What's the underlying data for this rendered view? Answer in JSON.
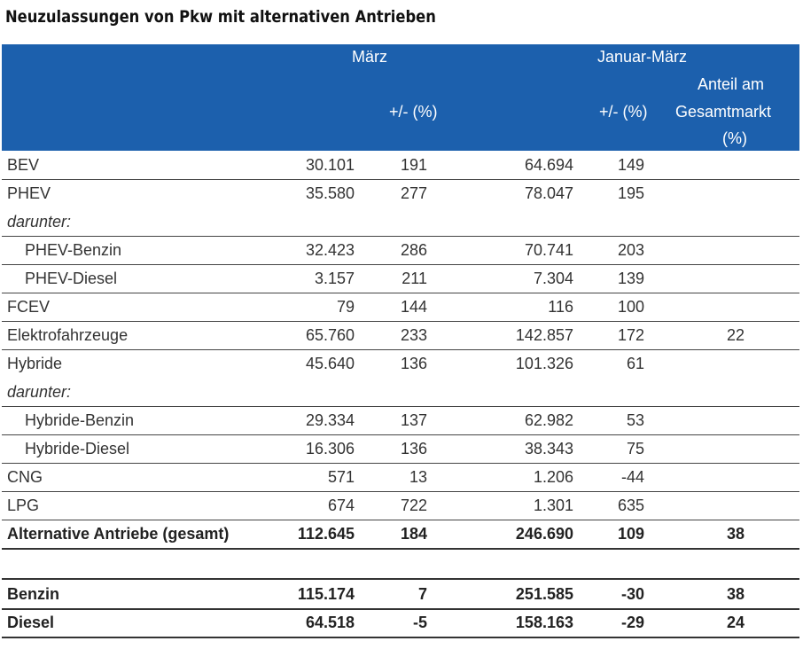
{
  "title": "Neuzulassungen von Pkw mit alternativen Antrieben",
  "header": {
    "group1": "März",
    "group2": "Januar-März",
    "pct1": "+/- (%)",
    "pct2": "+/- (%)",
    "share_line1": "Anteil am",
    "share_line2": "Gesamtmarkt",
    "share_line3": "(%)"
  },
  "rows": [
    {
      "label": "BEV",
      "m": "30.101",
      "mp": "191",
      "jm": "64.694",
      "jmp": "149",
      "share": ""
    },
    {
      "label": "PHEV",
      "m": "35.580",
      "mp": "277",
      "jm": "78.047",
      "jmp": "195",
      "share": ""
    },
    {
      "label": "darunter:",
      "m": "",
      "mp": "",
      "jm": "",
      "jmp": "",
      "share": ""
    },
    {
      "label": "PHEV-Benzin",
      "m": "32.423",
      "mp": "286",
      "jm": "70.741",
      "jmp": "203",
      "share": ""
    },
    {
      "label": "PHEV-Diesel",
      "m": "3.157",
      "mp": "211",
      "jm": "7.304",
      "jmp": "139",
      "share": ""
    },
    {
      "label": "FCEV",
      "m": "79",
      "mp": "144",
      "jm": "116",
      "jmp": "100",
      "share": ""
    },
    {
      "label": "Elektrofahrzeuge",
      "m": "65.760",
      "mp": "233",
      "jm": "142.857",
      "jmp": "172",
      "share": "22"
    },
    {
      "label": "Hybride",
      "m": "45.640",
      "mp": "136",
      "jm": "101.326",
      "jmp": "61",
      "share": ""
    },
    {
      "label": "darunter:",
      "m": "",
      "mp": "",
      "jm": "",
      "jmp": "",
      "share": ""
    },
    {
      "label": "Hybride-Benzin",
      "m": "29.334",
      "mp": "137",
      "jm": "62.982",
      "jmp": "53",
      "share": ""
    },
    {
      "label": "Hybride-Diesel",
      "m": "16.306",
      "mp": "136",
      "jm": "38.343",
      "jmp": "75",
      "share": ""
    },
    {
      "label": "CNG",
      "m": "571",
      "mp": "13",
      "jm": "1.206",
      "jmp": "-44",
      "share": ""
    },
    {
      "label": "LPG",
      "m": "674",
      "mp": "722",
      "jm": "1.301",
      "jmp": "635",
      "share": ""
    },
    {
      "label": "Alternative Antriebe (gesamt)",
      "m": "112.645",
      "mp": "184",
      "jm": "246.690",
      "jmp": "109",
      "share": "38"
    },
    {
      "label": "",
      "m": "",
      "mp": "",
      "jm": "",
      "jmp": "",
      "share": ""
    },
    {
      "label": "Benzin",
      "m": "115.174",
      "mp": "7",
      "jm": "251.585",
      "jmp": "-30",
      "share": "38"
    },
    {
      "label": "Diesel",
      "m": "64.518",
      "mp": "-5",
      "jm": "158.163",
      "jmp": "-29",
      "share": "24"
    }
  ]
}
